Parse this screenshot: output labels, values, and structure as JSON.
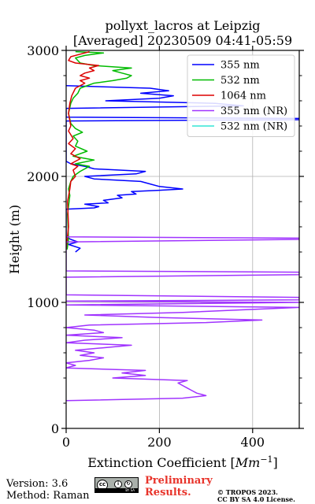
{
  "chart_data": {
    "type": "line",
    "title": "pollyxt_lacros at Leipzig",
    "subtitle": "[Averaged] 20230509 04:41-05:59",
    "xlabel": "Extinction Coefficient [Mm⁻¹]",
    "ylabel": "Height (m)",
    "xlim": [
      0,
      500
    ],
    "ylim": [
      0,
      3000
    ],
    "xticks": [
      0,
      200,
      400
    ],
    "yticks": [
      0,
      1000,
      2000,
      3000
    ],
    "grid": true,
    "legend_position": "top-right",
    "series": [
      {
        "name": "355 nm",
        "color": "#0000ff",
        "points": [
          [
            20,
            1400
          ],
          [
            30,
            1430
          ],
          [
            5,
            1460
          ],
          [
            25,
            1480
          ],
          [
            10,
            1500
          ],
          [
            0,
            1520
          ],
          [
            0,
            1740
          ],
          [
            60,
            1750
          ],
          [
            70,
            1760
          ],
          [
            40,
            1780
          ],
          [
            90,
            1790
          ],
          [
            80,
            1810
          ],
          [
            120,
            1830
          ],
          [
            110,
            1850
          ],
          [
            150,
            1860
          ],
          [
            140,
            1880
          ],
          [
            200,
            1890
          ],
          [
            250,
            1900
          ],
          [
            200,
            1920
          ],
          [
            180,
            1940
          ],
          [
            160,
            1960
          ],
          [
            60,
            1980
          ],
          [
            40,
            2000
          ],
          [
            150,
            2020
          ],
          [
            170,
            2040
          ],
          [
            60,
            2060
          ],
          [
            40,
            2080
          ],
          [
            10,
            2100
          ],
          [
            0,
            2120
          ],
          [
            0,
            2440
          ],
          [
            500,
            2450
          ],
          [
            500,
            2460
          ],
          [
            0,
            2470
          ],
          [
            0,
            2540
          ],
          [
            380,
            2560
          ],
          [
            320,
            2580
          ],
          [
            85,
            2600
          ],
          [
            200,
            2620
          ],
          [
            230,
            2640
          ],
          [
            160,
            2660
          ],
          [
            220,
            2680
          ],
          [
            180,
            2700
          ],
          [
            0,
            2720
          ]
        ]
      },
      {
        "name": "532 nm",
        "color": "#00bb00",
        "points": [
          [
            2,
            1420
          ],
          [
            5,
            1500
          ],
          [
            3,
            1700
          ],
          [
            8,
            1850
          ],
          [
            5,
            1900
          ],
          [
            10,
            1960
          ],
          [
            15,
            2000
          ],
          [
            30,
            2040
          ],
          [
            50,
            2080
          ],
          [
            20,
            2100
          ],
          [
            60,
            2130
          ],
          [
            15,
            2160
          ],
          [
            45,
            2200
          ],
          [
            20,
            2240
          ],
          [
            25,
            2280
          ],
          [
            15,
            2320
          ],
          [
            35,
            2350
          ],
          [
            20,
            2380
          ],
          [
            10,
            2420
          ],
          [
            5,
            2500
          ],
          [
            10,
            2580
          ],
          [
            15,
            2620
          ],
          [
            25,
            2660
          ],
          [
            30,
            2700
          ],
          [
            60,
            2740
          ],
          [
            100,
            2760
          ],
          [
            130,
            2780
          ],
          [
            140,
            2800
          ],
          [
            120,
            2820
          ],
          [
            100,
            2840
          ],
          [
            140,
            2860
          ],
          [
            60,
            2880
          ],
          [
            30,
            2900
          ],
          [
            20,
            2940
          ],
          [
            40,
            2960
          ],
          [
            80,
            2980
          ],
          [
            20,
            2990
          ]
        ]
      },
      {
        "name": "1064 nm",
        "color": "#dd0000",
        "points": [
          [
            0,
            1420
          ],
          [
            5,
            1600
          ],
          [
            3,
            1800
          ],
          [
            8,
            1900
          ],
          [
            10,
            1960
          ],
          [
            20,
            2000
          ],
          [
            15,
            2050
          ],
          [
            25,
            2080
          ],
          [
            10,
            2100
          ],
          [
            30,
            2140
          ],
          [
            10,
            2180
          ],
          [
            20,
            2220
          ],
          [
            5,
            2260
          ],
          [
            15,
            2300
          ],
          [
            5,
            2360
          ],
          [
            10,
            2400
          ],
          [
            5,
            2500
          ],
          [
            8,
            2580
          ],
          [
            12,
            2640
          ],
          [
            20,
            2700
          ],
          [
            40,
            2740
          ],
          [
            30,
            2760
          ],
          [
            50,
            2780
          ],
          [
            30,
            2800
          ],
          [
            40,
            2820
          ],
          [
            60,
            2840
          ],
          [
            50,
            2860
          ],
          [
            70,
            2880
          ],
          [
            20,
            2900
          ],
          [
            5,
            2920
          ],
          [
            10,
            2950
          ],
          [
            30,
            2970
          ],
          [
            50,
            2990
          ]
        ]
      },
      {
        "name": "355 nm (NR)",
        "color": "#a033ff",
        "points": [
          [
            0,
            220
          ],
          [
            250,
            240
          ],
          [
            300,
            260
          ],
          [
            280,
            280
          ],
          [
            270,
            300
          ],
          [
            260,
            320
          ],
          [
            250,
            340
          ],
          [
            240,
            360
          ],
          [
            260,
            380
          ],
          [
            100,
            400
          ],
          [
            170,
            420
          ],
          [
            120,
            440
          ],
          [
            170,
            460
          ],
          [
            0,
            480
          ],
          [
            20,
            500
          ],
          [
            0,
            520
          ],
          [
            50,
            540
          ],
          [
            80,
            560
          ],
          [
            30,
            580
          ],
          [
            60,
            600
          ],
          [
            20,
            620
          ],
          [
            80,
            640
          ],
          [
            140,
            660
          ],
          [
            0,
            680
          ],
          [
            40,
            700
          ],
          [
            120,
            720
          ],
          [
            0,
            740
          ],
          [
            80,
            760
          ],
          [
            60,
            780
          ],
          [
            0,
            800
          ],
          [
            50,
            820
          ],
          [
            300,
            840
          ],
          [
            420,
            860
          ],
          [
            200,
            880
          ],
          [
            40,
            900
          ],
          [
            250,
            920
          ],
          [
            370,
            940
          ],
          [
            500,
            960
          ],
          [
            0,
            980
          ],
          [
            500,
            1000
          ],
          [
            0,
            1010
          ],
          [
            500,
            1020
          ],
          [
            500,
            1040
          ],
          [
            0,
            1060
          ],
          [
            0,
            1080
          ],
          [
            0,
            1200
          ],
          [
            500,
            1220
          ],
          [
            500,
            1240
          ],
          [
            0,
            1250
          ],
          [
            0,
            1480
          ],
          [
            500,
            1500
          ],
          [
            500,
            1510
          ],
          [
            0,
            1520
          ],
          [
            0,
            1530
          ]
        ]
      },
      {
        "name": "532 nm (NR)",
        "color": "#33e6d6",
        "points": []
      }
    ]
  },
  "footer": {
    "version": "Version: 3.6",
    "method": "Method: Raman",
    "preliminary_line1": "Preliminary",
    "preliminary_line2": "Results.",
    "copyright_line1": "© TROPOS 2023.",
    "copyright_line2": "CC BY SA 4.0 License."
  },
  "license_badge": {
    "icon": "cc-by-sa-icon",
    "text": "BY SA"
  }
}
